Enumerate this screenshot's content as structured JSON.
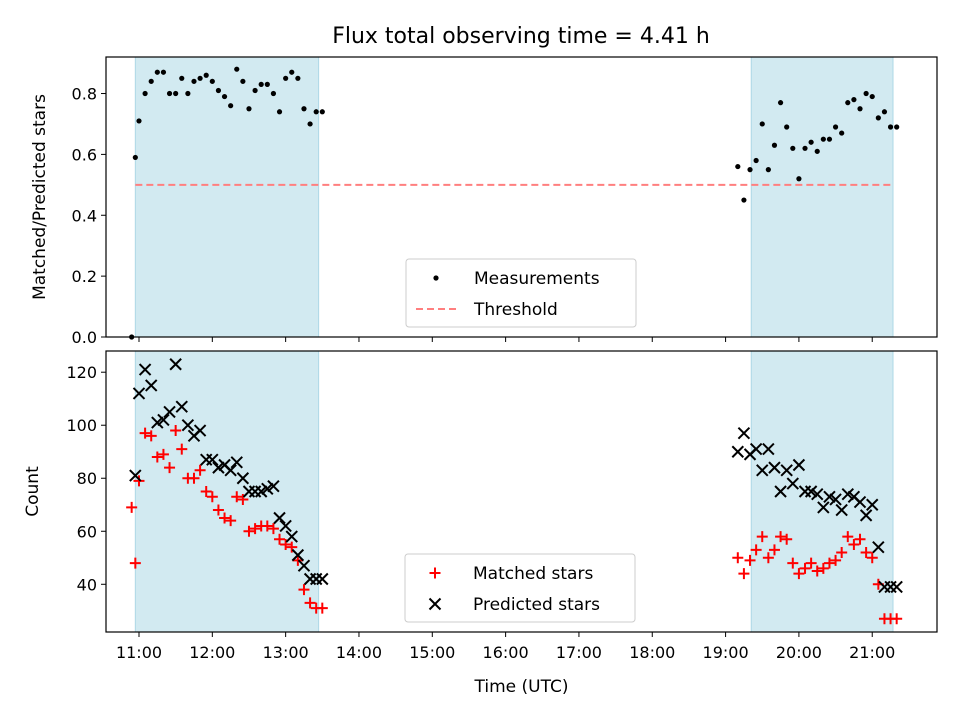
{
  "title": "Flux total observing time = 4.41 h",
  "colors": {
    "shade": "#add8e6",
    "threshold": "#ff7f7f",
    "measurement": "#000000",
    "matched": "#ff0000",
    "predicted": "#000000"
  },
  "chart_data": [
    {
      "type": "scatter",
      "panel": "top",
      "xlabel": "",
      "ylabel": "Matched/Predicted stars",
      "xlim": [
        "10:33",
        "21:53"
      ],
      "ylim": [
        0,
        0.92
      ],
      "yticks": [
        "0.0",
        "0.2",
        "0.4",
        "0.6",
        "0.8"
      ],
      "ytick_values": [
        0,
        0.2,
        0.4,
        0.6,
        0.8
      ],
      "xticks_labeled": false,
      "xtick_values": [
        "11:00",
        "12:00",
        "13:00",
        "14:00",
        "15:00",
        "16:00",
        "17:00",
        "18:00",
        "19:00",
        "20:00",
        "21:00"
      ],
      "shaded_intervals": [
        [
          "10:57",
          "13:27"
        ],
        [
          "19:21",
          "21:17"
        ]
      ],
      "threshold": 0.5,
      "legend": {
        "placement": "bottom-center",
        "entries": [
          "Measurements",
          "Threshold"
        ]
      },
      "series": [
        {
          "name": "Measurements",
          "marker": "dot",
          "x": [
            "10:54",
            "10:57",
            "11:00",
            "11:05",
            "11:10",
            "11:15",
            "11:20",
            "11:25",
            "11:30",
            "11:35",
            "11:40",
            "11:45",
            "11:50",
            "11:55",
            "12:00",
            "12:05",
            "12:10",
            "12:15",
            "12:20",
            "12:25",
            "12:30",
            "12:35",
            "12:40",
            "12:45",
            "12:50",
            "12:55",
            "13:00",
            "13:05",
            "13:10",
            "13:15",
            "13:20",
            "13:25",
            "13:30",
            "19:10",
            "19:15",
            "19:20",
            "19:25",
            "19:30",
            "19:35",
            "19:40",
            "19:45",
            "19:50",
            "19:55",
            "20:00",
            "20:05",
            "20:10",
            "20:15",
            "20:20",
            "20:25",
            "20:30",
            "20:35",
            "20:40",
            "20:45",
            "20:50",
            "20:55",
            "21:00",
            "21:05",
            "21:10",
            "21:15",
            "21:20"
          ],
          "y": [
            0.0,
            0.59,
            0.71,
            0.8,
            0.84,
            0.87,
            0.87,
            0.8,
            0.8,
            0.85,
            0.8,
            0.84,
            0.85,
            0.86,
            0.84,
            0.81,
            0.79,
            0.76,
            0.88,
            0.84,
            0.75,
            0.81,
            0.83,
            0.83,
            0.8,
            0.74,
            0.85,
            0.87,
            0.85,
            0.75,
            0.7,
            0.74,
            0.74,
            0.56,
            0.45,
            0.55,
            0.58,
            0.7,
            0.55,
            0.63,
            0.77,
            0.69,
            0.62,
            0.52,
            0.62,
            0.64,
            0.61,
            0.65,
            0.65,
            0.69,
            0.67,
            0.77,
            0.78,
            0.75,
            0.8,
            0.79,
            0.72,
            0.74,
            0.69,
            0.69
          ]
        },
        {
          "name": "Threshold",
          "marker": "dashed-line",
          "x": [
            "10:57",
            "21:17"
          ],
          "y": [
            0.5,
            0.5
          ]
        }
      ]
    },
    {
      "type": "scatter",
      "panel": "bottom",
      "xlabel": "Time (UTC)",
      "ylabel": "Count",
      "xlim": [
        "10:33",
        "21:53"
      ],
      "ylim": [
        22,
        128
      ],
      "yticks": [
        "40",
        "60",
        "80",
        "100",
        "120"
      ],
      "ytick_values": [
        40,
        60,
        80,
        100,
        120
      ],
      "xticks": [
        "11:00",
        "12:00",
        "13:00",
        "14:00",
        "15:00",
        "16:00",
        "17:00",
        "18:00",
        "19:00",
        "20:00",
        "21:00"
      ],
      "shaded_intervals": [
        [
          "10:57",
          "13:27"
        ],
        [
          "19:21",
          "21:17"
        ]
      ],
      "legend": {
        "placement": "bottom-center",
        "entries": [
          "Matched stars",
          "Predicted stars"
        ]
      },
      "series": [
        {
          "name": "Matched stars",
          "marker": "plus",
          "x": [
            "10:54",
            "10:57",
            "11:00",
            "11:05",
            "11:10",
            "11:15",
            "11:20",
            "11:25",
            "11:30",
            "11:35",
            "11:40",
            "11:45",
            "11:50",
            "11:55",
            "12:00",
            "12:05",
            "12:10",
            "12:15",
            "12:20",
            "12:25",
            "12:30",
            "12:35",
            "12:40",
            "12:45",
            "12:50",
            "12:55",
            "13:00",
            "13:05",
            "13:10",
            "13:15",
            "13:20",
            "13:25",
            "13:30",
            "19:10",
            "19:15",
            "19:20",
            "19:25",
            "19:30",
            "19:35",
            "19:40",
            "19:45",
            "19:50",
            "19:55",
            "20:00",
            "20:05",
            "20:10",
            "20:15",
            "20:20",
            "20:25",
            "20:30",
            "20:35",
            "20:40",
            "20:45",
            "20:50",
            "20:55",
            "21:00",
            "21:05",
            "21:10",
            "21:15",
            "21:20"
          ],
          "y": [
            69,
            48,
            79,
            97,
            96,
            88,
            89,
            84,
            98,
            91,
            80,
            80,
            83,
            75,
            73,
            68,
            65,
            64,
            73,
            72,
            60,
            61,
            62,
            62,
            61,
            57,
            55,
            54,
            49,
            38,
            33,
            31,
            31,
            50,
            44,
            49,
            53,
            58,
            50,
            53,
            58,
            57,
            48,
            44,
            46,
            48,
            45,
            46,
            48,
            49,
            52,
            58,
            55,
            57,
            52,
            50,
            40,
            27,
            27,
            27
          ]
        },
        {
          "name": "Predicted stars",
          "marker": "x",
          "x": [
            "10:57",
            "11:00",
            "11:05",
            "11:10",
            "11:15",
            "11:20",
            "11:25",
            "11:30",
            "11:35",
            "11:40",
            "11:45",
            "11:50",
            "11:55",
            "12:00",
            "12:05",
            "12:10",
            "12:15",
            "12:20",
            "12:25",
            "12:30",
            "12:35",
            "12:40",
            "12:45",
            "12:50",
            "12:55",
            "13:00",
            "13:05",
            "13:10",
            "13:15",
            "13:20",
            "13:25",
            "13:30",
            "19:10",
            "19:15",
            "19:20",
            "19:25",
            "19:30",
            "19:35",
            "19:40",
            "19:45",
            "19:50",
            "19:55",
            "20:00",
            "20:05",
            "20:10",
            "20:15",
            "20:20",
            "20:25",
            "20:30",
            "20:35",
            "20:40",
            "20:45",
            "20:50",
            "20:55",
            "21:00",
            "21:05",
            "21:10",
            "21:15",
            "21:20"
          ],
          "y": [
            81,
            112,
            121,
            115,
            101,
            102,
            105,
            123,
            107,
            100,
            96,
            98,
            87,
            87,
            84,
            85,
            83,
            86,
            80,
            75,
            75,
            75,
            76,
            77,
            65,
            62,
            58,
            51,
            47,
            42,
            42,
            42,
            90,
            97,
            89,
            91,
            83,
            91,
            84,
            75,
            83,
            78,
            85,
            75,
            75,
            74,
            69,
            73,
            72,
            68,
            74,
            73,
            71,
            66,
            70,
            54,
            39,
            39,
            39
          ]
        }
      ]
    }
  ]
}
